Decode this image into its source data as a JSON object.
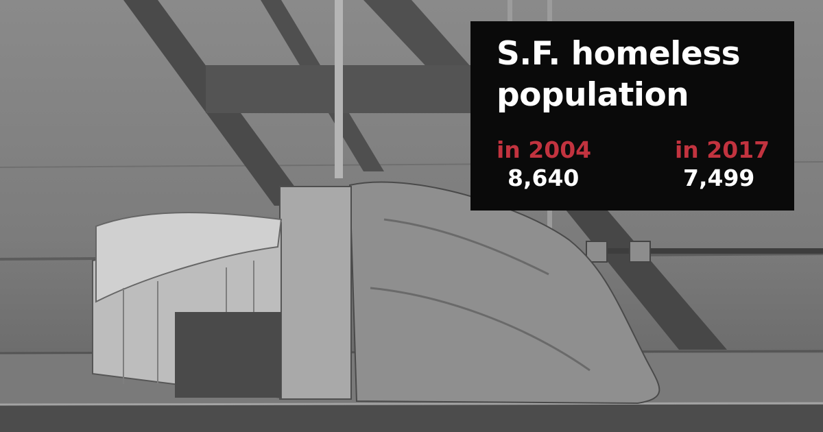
{
  "infographic": {
    "title_line1": "S.F. homeless",
    "title_line2": "population",
    "stats": [
      {
        "year_label": "in 2004",
        "value": "8,640"
      },
      {
        "year_label": "in 2017",
        "value": "7,499"
      }
    ]
  },
  "colors": {
    "box_background": "#0a0a0a",
    "title_text": "#ffffff",
    "year_accent": "#c2333f",
    "value_text": "#ffffff"
  },
  "photo": {
    "style": "black-and-white",
    "subject": "cardboard-and-tarp-shelter"
  }
}
